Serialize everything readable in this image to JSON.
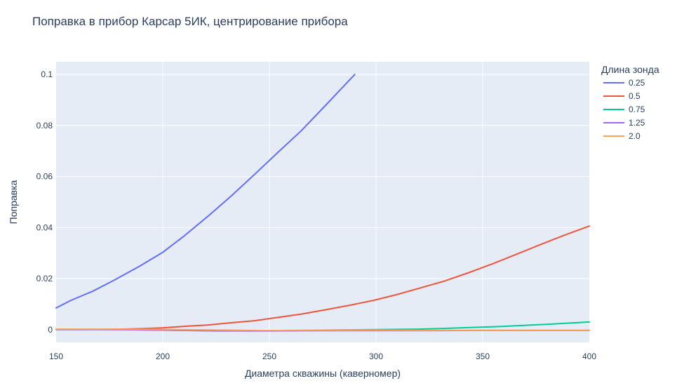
{
  "chart_data": {
    "type": "line",
    "title": "Поправка в прибор Карсар 5ИК, центрирование прибора",
    "xlabel": "Диаметра скважины (каверномер)",
    "ylabel": "Поправка",
    "xlim": [
      150,
      400
    ],
    "ylim": [
      -0.005,
      0.105
    ],
    "xticks": [
      150,
      200,
      250,
      300,
      350,
      400
    ],
    "xtick_labels": [
      "150",
      "200",
      "250",
      "300",
      "350",
      "400"
    ],
    "yticks": [
      0,
      0.02,
      0.04,
      0.06,
      0.08,
      0.1
    ],
    "ytick_labels": [
      "0",
      "0.02",
      "0.04",
      "0.06",
      "0.08",
      "0.1"
    ],
    "grid": true,
    "plot_background": "#e5ecf6",
    "legend": {
      "title": "Длина зонда",
      "placement": "right"
    },
    "series": [
      {
        "name": "0.25",
        "color": "#636efa",
        "x": [
          150,
          157,
          167,
          177,
          189,
          200,
          210,
          221,
          232,
          243,
          254,
          265,
          277,
          290
        ],
        "y": [
          0.0085,
          0.0115,
          0.015,
          0.0193,
          0.0248,
          0.0303,
          0.0367,
          0.0443,
          0.0523,
          0.0608,
          0.0695,
          0.078,
          0.0885,
          0.1
        ]
      },
      {
        "name": "0.5",
        "color": "#ef553b",
        "x": [
          150,
          160,
          170,
          180,
          190,
          200,
          210,
          221,
          232,
          243,
          254,
          265,
          277,
          288,
          299,
          310,
          321,
          332,
          344,
          355,
          366,
          377,
          388,
          400
        ],
        "y": [
          0,
          5e-05,
          0.0001,
          0.0002,
          0.0004,
          0.0007,
          0.0013,
          0.0018,
          0.0027,
          0.0035,
          0.0048,
          0.0061,
          0.0079,
          0.0096,
          0.0115,
          0.0138,
          0.0164,
          0.019,
          0.0225,
          0.0259,
          0.0296,
          0.0333,
          0.0369,
          0.0406
        ]
      },
      {
        "name": "0.75",
        "color": "#00cc96",
        "x": [
          150,
          180,
          210,
          240,
          270,
          300,
          320,
          340,
          360,
          380,
          400
        ],
        "y": [
          0,
          0,
          -0.0003,
          -0.0005,
          -0.0002,
          0,
          0.0002,
          0.0007,
          0.0013,
          0.0021,
          0.003
        ]
      },
      {
        "name": "1.25",
        "color": "#ab63fa",
        "x": [
          150,
          175,
          200,
          225,
          250,
          275,
          300,
          325,
          350,
          375,
          400
        ],
        "y": [
          0.0001,
          0,
          -0.0002,
          -0.0005,
          -0.0005,
          -0.0004,
          -0.0004,
          -0.0004,
          -0.0003,
          -0.0003,
          -0.0003
        ]
      },
      {
        "name": "2.0",
        "color": "#ffa15a",
        "x": [
          150,
          175,
          200,
          225,
          250,
          275,
          300,
          325,
          350,
          375,
          400
        ],
        "y": [
          0.0002,
          0.0002,
          0.0001,
          -0.0001,
          -0.0003,
          -0.0002,
          -0.0002,
          -0.0003,
          -0.0002,
          -0.0002,
          -0.0002
        ]
      }
    ]
  }
}
